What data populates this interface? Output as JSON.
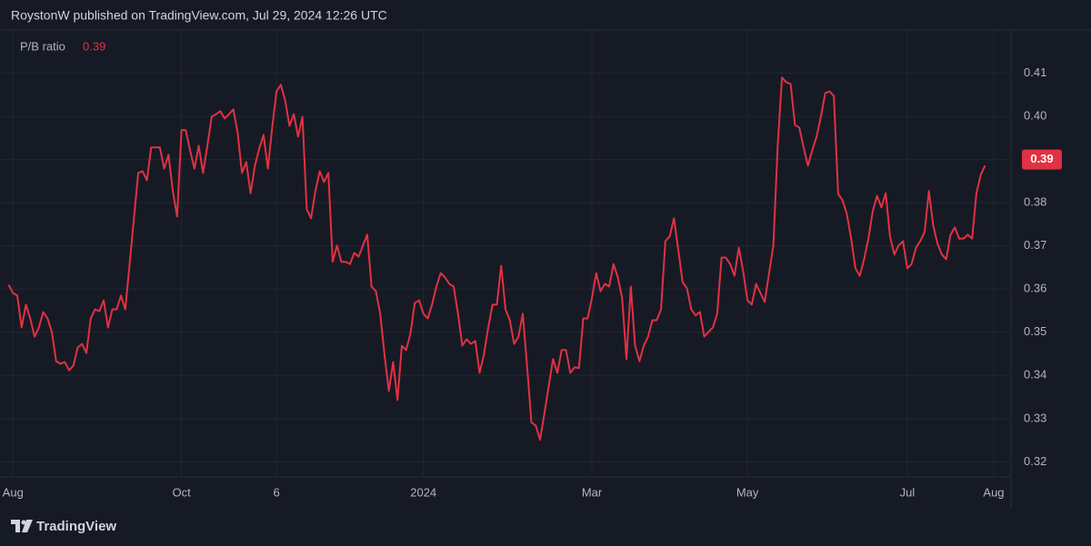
{
  "header": {
    "text": "RoystonW published on TradingView.com, Jul 29, 2024 12:26 UTC"
  },
  "chart_data": {
    "type": "line",
    "series": [
      {
        "name": "P/B ratio",
        "color": "#e03242",
        "values": [
          0.361,
          0.3591,
          0.3585,
          0.3511,
          0.3564,
          0.3532,
          0.349,
          0.3511,
          0.3547,
          0.3532,
          0.3501,
          0.3433,
          0.3427,
          0.3431,
          0.3412,
          0.3423,
          0.3465,
          0.3473,
          0.3452,
          0.3532,
          0.3553,
          0.3549,
          0.3574,
          0.3511,
          0.3553,
          0.3553,
          0.3585,
          0.3553,
          0.3658,
          0.3764,
          0.3869,
          0.3873,
          0.3852,
          0.3928,
          0.3928,
          0.3928,
          0.3879,
          0.3911,
          0.3827,
          0.3768,
          0.3968,
          0.3968,
          0.3921,
          0.3879,
          0.3932,
          0.3869,
          0.3932,
          0.3999,
          0.4005,
          0.4012,
          0.3995,
          0.4005,
          0.4016,
          0.3963,
          0.3869,
          0.3894,
          0.3822,
          0.3886,
          0.3925,
          0.3957,
          0.3879,
          0.3974,
          0.4058,
          0.4073,
          0.4037,
          0.3978,
          0.4005,
          0.3953,
          0.3999,
          0.3785,
          0.3764,
          0.3827,
          0.3873,
          0.3848,
          0.3869,
          0.3663,
          0.3701,
          0.3663,
          0.3663,
          0.3658,
          0.3684,
          0.3675,
          0.3701,
          0.3726,
          0.3606,
          0.3595,
          0.3543,
          0.3448,
          0.3364,
          0.3431,
          0.3343,
          0.3469,
          0.3459,
          0.3497,
          0.3568,
          0.3574,
          0.3543,
          0.3532,
          0.3564,
          0.3606,
          0.3637,
          0.3627,
          0.3612,
          0.3606,
          0.3543,
          0.3469,
          0.3484,
          0.3473,
          0.348,
          0.3406,
          0.3448,
          0.3511,
          0.3564,
          0.3564,
          0.3654,
          0.3553,
          0.3528,
          0.3473,
          0.349,
          0.3543,
          0.3421,
          0.3291,
          0.3284,
          0.3251,
          0.3312,
          0.3375,
          0.3438,
          0.3406,
          0.3459,
          0.3459,
          0.3406,
          0.3419,
          0.3417,
          0.3532,
          0.3532,
          0.3579,
          0.3637,
          0.3595,
          0.3612,
          0.3606,
          0.3658,
          0.3627,
          0.3579,
          0.3438,
          0.3606,
          0.3469,
          0.3433,
          0.3469,
          0.349,
          0.3528,
          0.3528,
          0.3553,
          0.3711,
          0.3722,
          0.3764,
          0.369,
          0.3616,
          0.3602,
          0.3553,
          0.3539,
          0.3547,
          0.349,
          0.3501,
          0.3511,
          0.3543,
          0.3673,
          0.3673,
          0.3658,
          0.3631,
          0.3696,
          0.3642,
          0.3574,
          0.3564,
          0.3612,
          0.3591,
          0.357,
          0.3637,
          0.3701,
          0.3932,
          0.409,
          0.4079,
          0.4075,
          0.398,
          0.3974,
          0.3928,
          0.3886,
          0.3921,
          0.3953,
          0.3999,
          0.4054,
          0.4058,
          0.4047,
          0.382,
          0.3806,
          0.3774,
          0.3717,
          0.3648,
          0.3631,
          0.3669,
          0.3717,
          0.378,
          0.3816,
          0.3789,
          0.3822,
          0.3722,
          0.368,
          0.3701,
          0.3711,
          0.3648,
          0.3658,
          0.3696,
          0.3711,
          0.3732,
          0.3827,
          0.3747,
          0.3705,
          0.368,
          0.3669,
          0.3726,
          0.3743,
          0.3717,
          0.3717,
          0.3726,
          0.3717,
          0.3822,
          0.3865,
          0.3886
        ]
      }
    ],
    "last_value": 0.39,
    "xlim": [
      -2,
      232
    ],
    "xticks": [
      {
        "value": 1,
        "label": "Aug"
      },
      {
        "value": 40,
        "label": "Oct"
      },
      {
        "value": 62,
        "label": "6"
      },
      {
        "value": 96,
        "label": "2024"
      },
      {
        "value": 135,
        "label": "Mar"
      },
      {
        "value": 171,
        "label": "May"
      },
      {
        "value": 208,
        "label": "Jul"
      },
      {
        "value": 228,
        "label": "Aug"
      }
    ],
    "ylim": [
      0.3165,
      0.42
    ],
    "yticks": [
      0.32,
      0.33,
      0.34,
      0.35,
      0.36,
      0.37,
      0.38,
      0.39,
      {
        "value": 0.4,
        "label": "0.40"
      },
      0.41
    ],
    "grid": true
  },
  "footer": {
    "brand": "TradingView"
  }
}
